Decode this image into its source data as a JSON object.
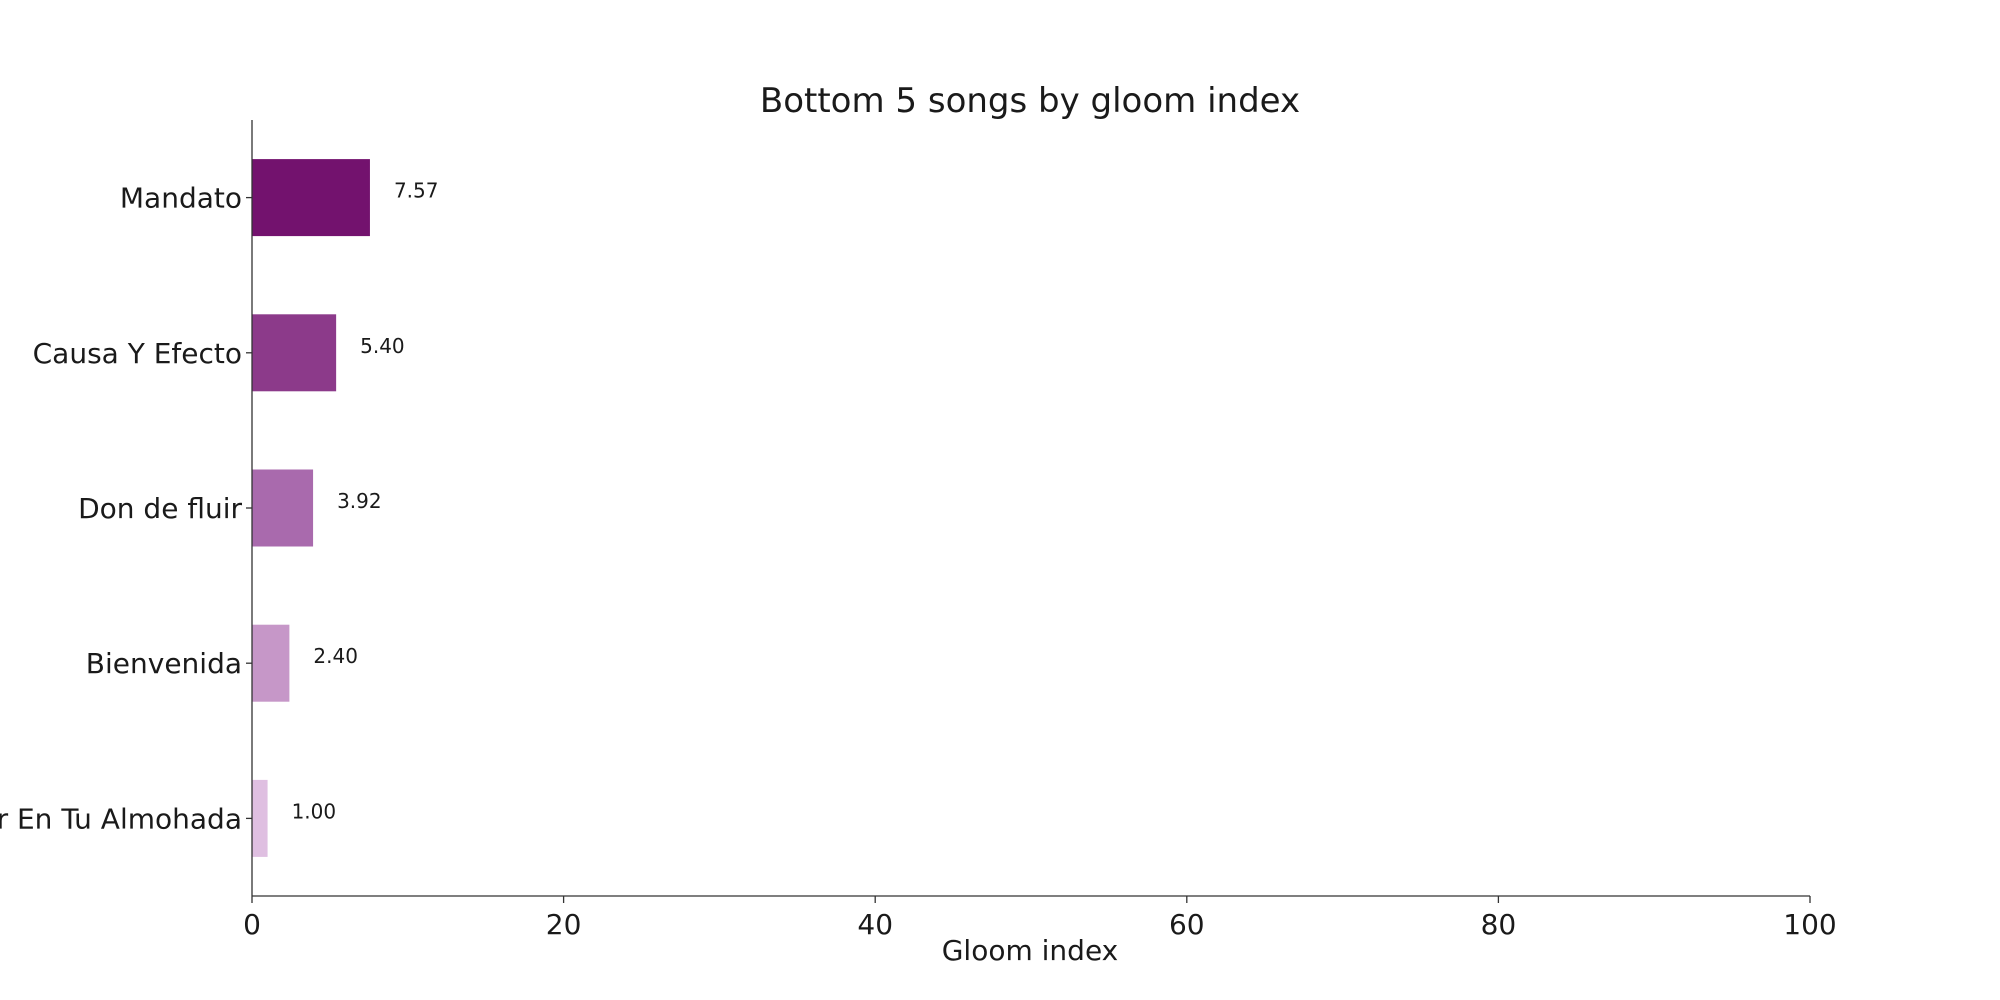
{
  "chart_data": {
    "type": "bar",
    "orientation": "horizontal",
    "title": "Bottom 5 songs by gloom index",
    "xlabel": "Gloom index",
    "ylabel": "",
    "xlim": [
      0,
      100
    ],
    "x_ticks": [
      0,
      20,
      40,
      60,
      80,
      100
    ],
    "x_tick_labels": [
      "0",
      "20",
      "40",
      "60",
      "80",
      "100"
    ],
    "categories": [
      "Mandato",
      "Causa Y Efecto",
      "Don de fluir",
      "Bienvenida",
      "r En Tu Almohada"
    ],
    "values": [
      7.57,
      5.4,
      3.92,
      2.4,
      1.0
    ],
    "value_labels": [
      "7.57",
      "5.40",
      "3.92",
      "2.40",
      "1.00"
    ],
    "colors": [
      "#73126e",
      "#8c3a8a",
      "#a96aad",
      "#c697c8",
      "#dfbfe1"
    ],
    "grid": false,
    "legend": "none"
  }
}
